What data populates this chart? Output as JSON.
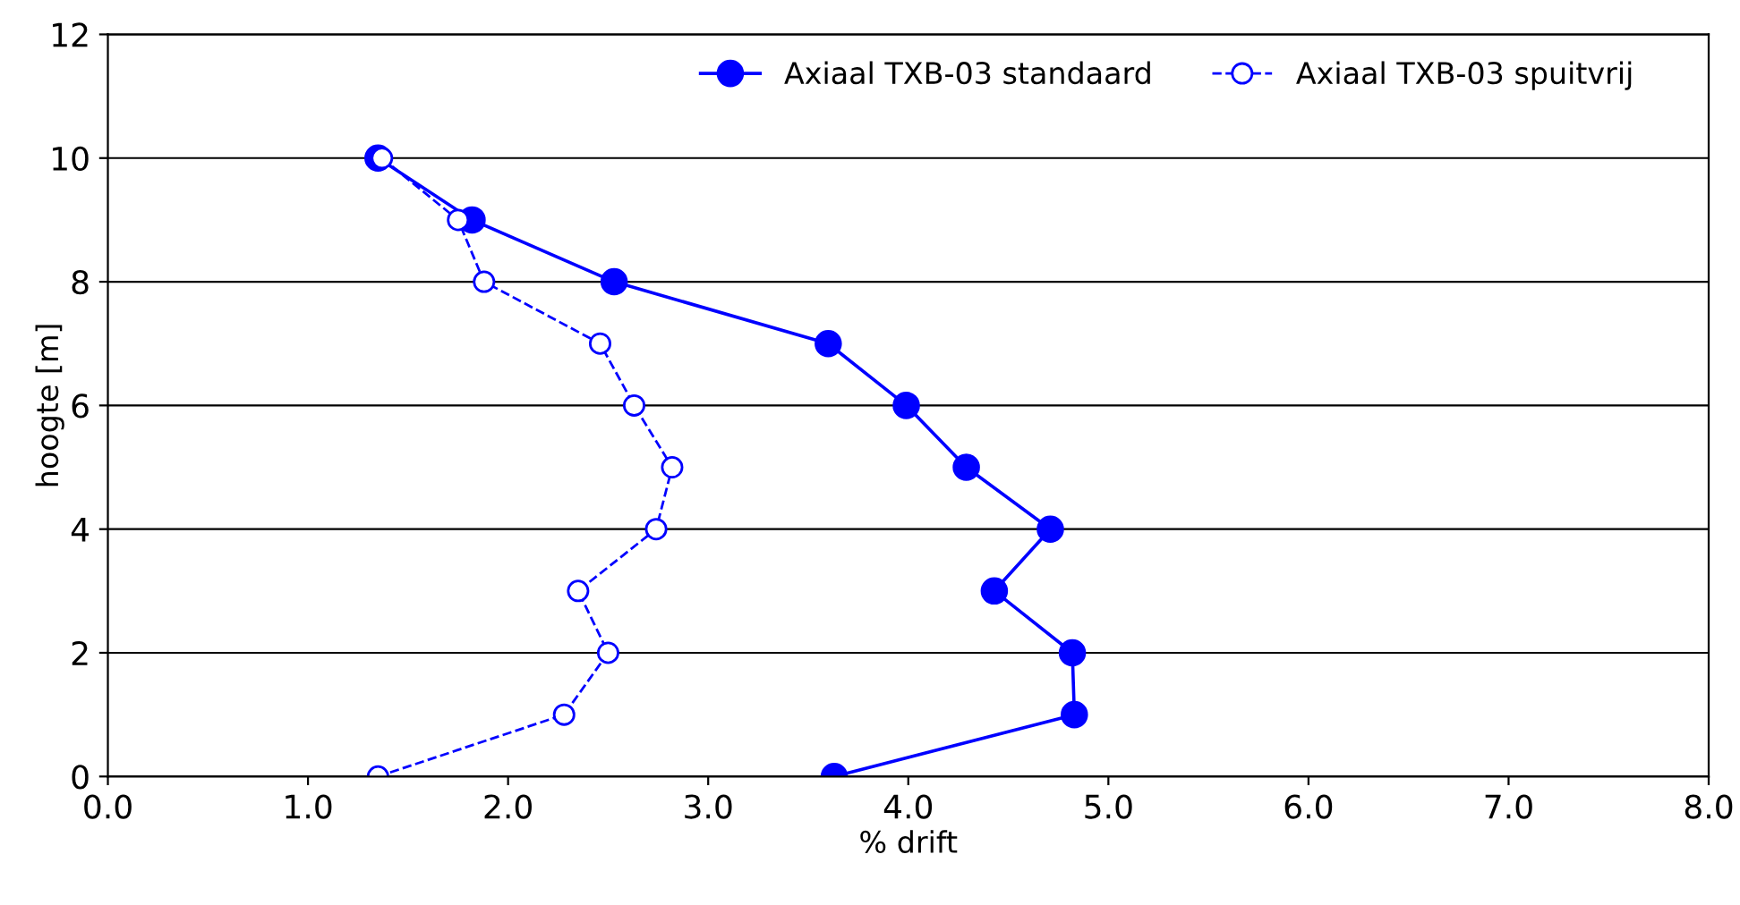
{
  "chart_data": {
    "type": "line",
    "xlabel": "% drift",
    "ylabel": "hoogte [m]",
    "xlim": [
      0,
      8
    ],
    "ylim": [
      0,
      12
    ],
    "xticks": [
      {
        "value": 0,
        "label": "0.0"
      },
      {
        "value": 1,
        "label": "1.0"
      },
      {
        "value": 2,
        "label": "2.0"
      },
      {
        "value": 3,
        "label": "3.0"
      },
      {
        "value": 4,
        "label": "4.0"
      },
      {
        "value": 5,
        "label": "5.0"
      },
      {
        "value": 6,
        "label": "6.0"
      },
      {
        "value": 7,
        "label": "7.0"
      },
      {
        "value": 8,
        "label": "8.0"
      }
    ],
    "yticks": [
      0,
      2,
      4,
      6,
      8,
      10,
      12
    ],
    "grid": "y",
    "legend": "top right",
    "marker": "circle",
    "series": [
      {
        "name": "Axiaal TXB-03 standaard",
        "color": "#0000ff",
        "line_style": "solid",
        "x": [
          1.35,
          1.82,
          2.53,
          3.6,
          3.99,
          4.29,
          4.71,
          4.43,
          4.82,
          4.83,
          3.63
        ],
        "values": [
          10,
          9,
          8,
          7,
          6,
          5,
          4,
          3,
          2,
          1,
          0
        ]
      },
      {
        "name": "Axiaal TXB-03 spuitvrij",
        "color": "#0000ff",
        "line_style": "dashed",
        "x": [
          1.37,
          1.75,
          1.88,
          2.46,
          2.63,
          2.82,
          2.74,
          2.35,
          2.5,
          2.28,
          1.35
        ],
        "values": [
          10,
          9,
          8,
          7,
          6,
          5,
          4,
          3,
          2,
          1,
          0
        ]
      }
    ]
  }
}
